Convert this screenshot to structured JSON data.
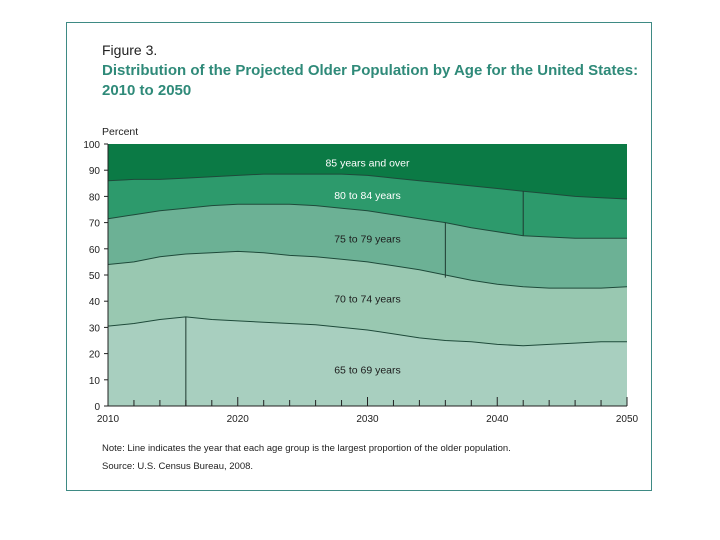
{
  "figure_label": "Figure 3.",
  "title_line1": "Distribution of the Projected Older Population by Age for the United States:",
  "title_line2": "2010 to 2050",
  "note": "Note: Line indicates the year that each age group is the largest proportion of the older population.",
  "source": "Source: U.S. Census Bureau, 2008.",
  "colors": {
    "frame": "#3e8a84",
    "title": "#2f8a79",
    "band_65_69": "#a8cfbf",
    "band_70_74": "#99c8b1",
    "band_75_79": "#6cb195",
    "band_80_84": "#2d9a6c",
    "band_85_over": "#0b7a45"
  },
  "chart_data": {
    "type": "area",
    "stacked": true,
    "ylabel": "Percent",
    "xlabel": "",
    "xlim": [
      2010,
      2050
    ],
    "ylim": [
      0,
      100
    ],
    "x_ticks": [
      2010,
      2020,
      2030,
      2040,
      2050
    ],
    "y_ticks": [
      0,
      10,
      20,
      30,
      40,
      50,
      60,
      70,
      80,
      90,
      100
    ],
    "x": [
      2010,
      2012,
      2014,
      2016,
      2018,
      2020,
      2022,
      2024,
      2026,
      2028,
      2030,
      2032,
      2034,
      2036,
      2038,
      2040,
      2042,
      2044,
      2046,
      2048,
      2050
    ],
    "boundaries": [
      {
        "name": "65 to 69 years (top)",
        "values": [
          30.5,
          31.5,
          33,
          34,
          33,
          32.5,
          32,
          31.5,
          31,
          30,
          29,
          27.5,
          26,
          25,
          24.5,
          23.5,
          23,
          23.5,
          24,
          24.5,
          24.5
        ]
      },
      {
        "name": "70 to 74 years (top)",
        "values": [
          54,
          55,
          57,
          58,
          58.5,
          59,
          58.5,
          57.5,
          57,
          56,
          55,
          53.5,
          52,
          50,
          48,
          46.5,
          45.5,
          45,
          45,
          45,
          45.5
        ]
      },
      {
        "name": "75 to 79 years (top)",
        "values": [
          71.5,
          73,
          74.5,
          75.5,
          76.5,
          77,
          77,
          77,
          76.5,
          75.5,
          74.5,
          73,
          71.5,
          70,
          68,
          66.5,
          65,
          64.5,
          64,
          64,
          64
        ]
      },
      {
        "name": "80 to 84 years (top)",
        "values": [
          86,
          86.5,
          86.5,
          87,
          87.5,
          88,
          88.5,
          88.5,
          88.5,
          88.5,
          88,
          87,
          86,
          85,
          84,
          83,
          82,
          81,
          80,
          79.5,
          79
        ]
      },
      {
        "name": "85 years and over (top)",
        "values": [
          100,
          100,
          100,
          100,
          100,
          100,
          100,
          100,
          100,
          100,
          100,
          100,
          100,
          100,
          100,
          100,
          100,
          100,
          100,
          100,
          100
        ]
      }
    ],
    "series": [
      {
        "name": "65 to 69 years",
        "label_year": 2030,
        "label_value": 14,
        "peak_year": 2016
      },
      {
        "name": "70 to 74 years",
        "label_year": 2030,
        "label_value": 41,
        "peak_year": 2020
      },
      {
        "name": "75 to 79 years",
        "label_year": 2030,
        "label_value": 64,
        "peak_year": 2036
      },
      {
        "name": "80 to 84 years",
        "label_year": 2030,
        "label_value": 80.5,
        "peak_year": 2042
      },
      {
        "name": "85 years and over",
        "label_year": 2030,
        "label_value": 93,
        "peak_year": 2050
      }
    ],
    "peak_lines": [
      {
        "year": 2016,
        "from": 0,
        "to": 34
      },
      {
        "year": 2036,
        "from": 49,
        "to": 70
      },
      {
        "year": 2042,
        "from": 65,
        "to": 82
      }
    ]
  }
}
